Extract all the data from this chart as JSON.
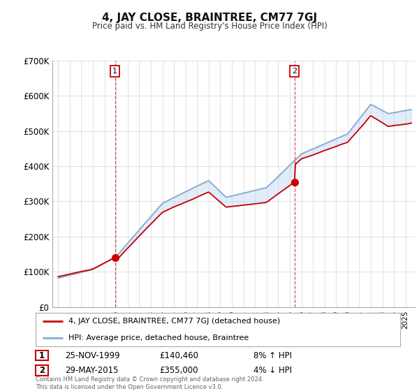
{
  "title": "4, JAY CLOSE, BRAINTREE, CM77 7GJ",
  "subtitle": "Price paid vs. HM Land Registry's House Price Index (HPI)",
  "ylim": [
    0,
    700000
  ],
  "yticks": [
    0,
    100000,
    200000,
    300000,
    400000,
    500000,
    600000,
    700000
  ],
  "ytick_labels": [
    "£0",
    "£100K",
    "£200K",
    "£300K",
    "£400K",
    "£500K",
    "£600K",
    "£700K"
  ],
  "sale1_x": 1999.9,
  "sale1_price": 140460,
  "sale2_x": 2015.4,
  "sale2_price": 355000,
  "dashed_x1": 1999.9,
  "dashed_x2": 2015.4,
  "hpi_color": "#aaccee",
  "hpi_line_color": "#88aacc",
  "price_color": "#cc0000",
  "background": "#ffffff",
  "grid_color": "#dddddd",
  "xlim_left": 1994.5,
  "xlim_right": 2025.8,
  "legend_entries": [
    "4, JAY CLOSE, BRAINTREE, CM77 7GJ (detached house)",
    "HPI: Average price, detached house, Braintree"
  ],
  "table_rows": [
    {
      "num": "1",
      "date": "25-NOV-1999",
      "price": "£140,460",
      "hpi": "8% ↑ HPI"
    },
    {
      "num": "2",
      "date": "29-MAY-2015",
      "price": "£355,000",
      "hpi": "4% ↓ HPI"
    }
  ],
  "footnote": "Contains HM Land Registry data © Crown copyright and database right 2024.\nThis data is licensed under the Open Government Licence v3.0."
}
